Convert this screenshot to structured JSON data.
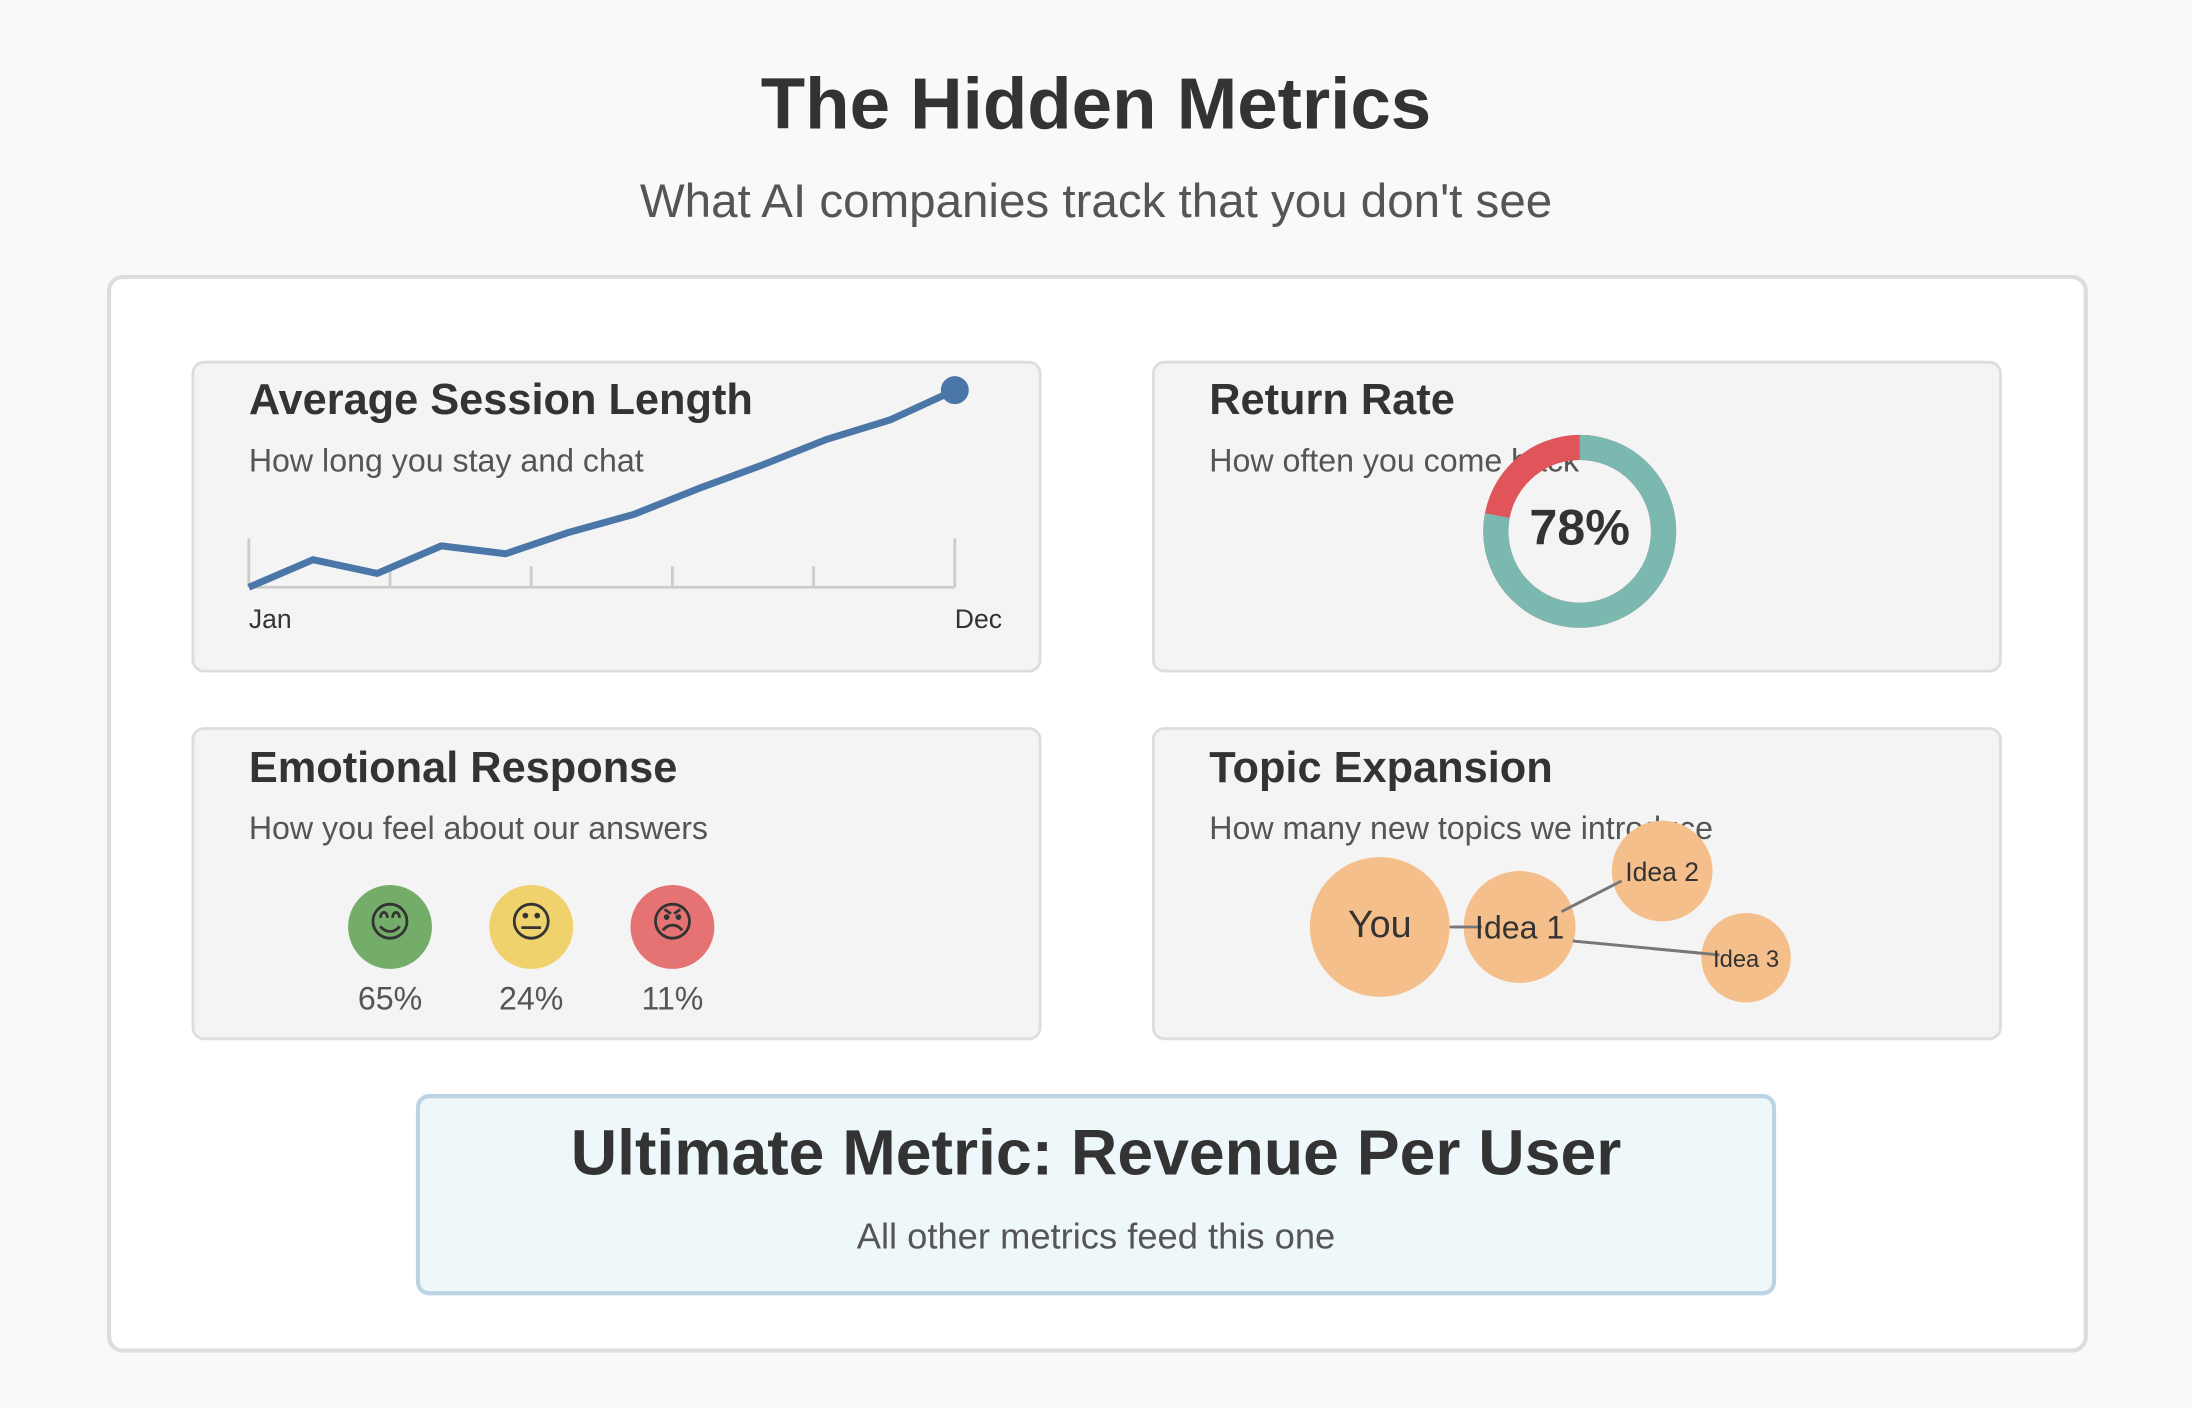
{
  "header": {
    "title": "The Hidden Metrics",
    "subtitle": "What AI companies track that you don't see"
  },
  "session": {
    "title": "Average Session Length",
    "subtitle": "How long you stay and chat",
    "type": "line",
    "color": "#4a76a8",
    "categories": [
      "Jan",
      null,
      null,
      null,
      null,
      null,
      null,
      null,
      null,
      null,
      null,
      "Dec"
    ],
    "values": [
      0,
      14,
      7,
      21,
      17,
      28,
      37,
      50,
      62,
      75,
      85,
      100
    ]
  },
  "return_rate": {
    "title": "Return Rate",
    "subtitle": "How often you come back",
    "type": "donut",
    "value": 78,
    "value_label": "78%",
    "color": "#7ab8b0",
    "rest_color": "#e0555a"
  },
  "emotion": {
    "title": "Emotional Response",
    "subtitle": "How you feel about our answers",
    "items": [
      {
        "icon": "😊",
        "value": 65,
        "value_label": "65%",
        "color": "#74ad6a"
      },
      {
        "icon": "😐",
        "value": 24,
        "value_label": "24%",
        "color": "#f0d26c"
      },
      {
        "icon": "😠",
        "value": 11,
        "value_label": "11%",
        "color": "#e57373"
      }
    ]
  },
  "topics": {
    "title": "Topic Expansion",
    "subtitle": "How many new topics we introduce",
    "nodes": [
      "You",
      "Idea 1",
      "Idea 2",
      "Idea 3"
    ]
  },
  "ultimate": {
    "title": "Ultimate Metric: Revenue Per User",
    "subtitle": "All other metrics feed this one"
  }
}
